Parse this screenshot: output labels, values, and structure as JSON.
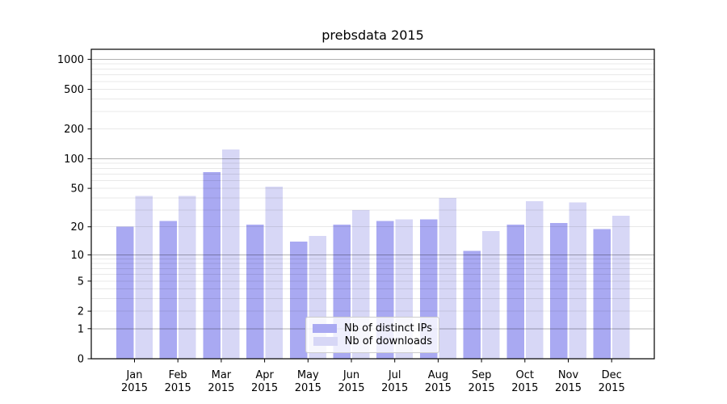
{
  "title": "prebsdata 2015",
  "chart_data": {
    "type": "bar",
    "title": "prebsdata 2015",
    "subtitle": "",
    "xlabel": "",
    "ylabel": "",
    "scale": "log1p",
    "grid": true,
    "legend_position": "lower center",
    "year_label": "2015",
    "categories": [
      "Jan",
      "Feb",
      "Mar",
      "Apr",
      "May",
      "Jun",
      "Jul",
      "Aug",
      "Sep",
      "Oct",
      "Nov",
      "Dec"
    ],
    "series": [
      {
        "name": "Nb of distinct IPs",
        "color": "#a9a9f2",
        "values": [
          20,
          23,
          73,
          21,
          14,
          21,
          23,
          24,
          11,
          21,
          22,
          19
        ]
      },
      {
        "name": "Nb of downloads",
        "color": "#d7d7f6",
        "values": [
          42,
          42,
          124,
          52,
          16,
          30,
          24,
          40,
          18,
          37,
          36,
          26
        ]
      }
    ],
    "yticks": [
      0,
      1,
      2,
      5,
      10,
      20,
      50,
      100,
      200,
      500,
      1000
    ],
    "ylim": [
      0,
      1270
    ],
    "colors": {
      "major_grid": "rgba(0,0,0,0.30)",
      "minor_grid": "rgba(0,0,0,0.09)",
      "axis": "#000000",
      "text": "#000000",
      "background": "#ffffff"
    }
  }
}
